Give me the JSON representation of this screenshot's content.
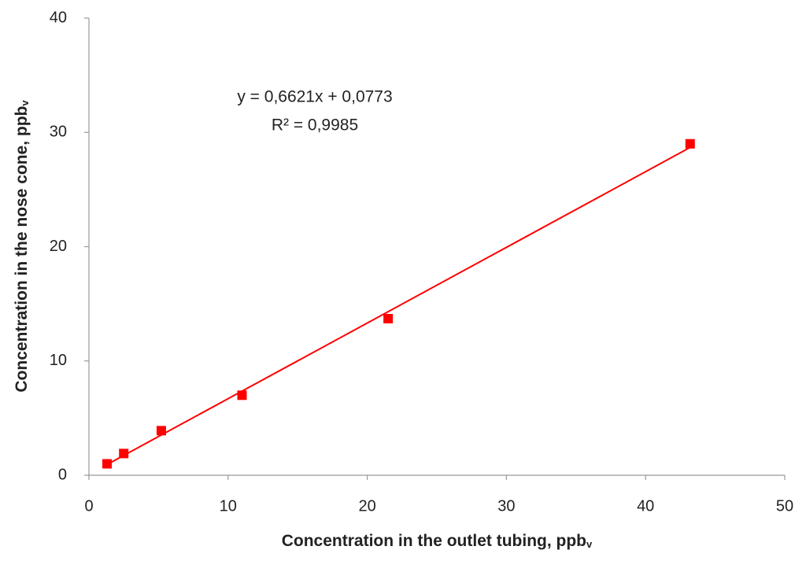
{
  "chart_data": {
    "type": "scatter",
    "x_label": "Concentration in the outlet tubing, ppb",
    "x_label_sub": "v",
    "y_label": "Concentration in the nose cone, ppb",
    "y_label_sub": "v",
    "annotations": [
      "y = 0,6621x + 0,0773",
      "R² = 0,9985"
    ],
    "x": [
      1.3,
      2.5,
      5.2,
      11.0,
      21.5,
      43.2
    ],
    "series": [
      {
        "name": "Concentration",
        "color": "#ff0000",
        "values": [
          1.0,
          1.9,
          3.9,
          7.0,
          13.7,
          29.0
        ]
      }
    ],
    "trendline": {
      "slope": 0.6621,
      "intercept": 0.0773,
      "color": "#ff0000"
    },
    "xlim": [
      0,
      50
    ],
    "xticks": [
      0,
      10,
      20,
      30,
      40,
      50
    ],
    "ylim": [
      0,
      40
    ],
    "yticks": [
      0,
      10,
      20,
      30,
      40
    ],
    "grid": false
  }
}
